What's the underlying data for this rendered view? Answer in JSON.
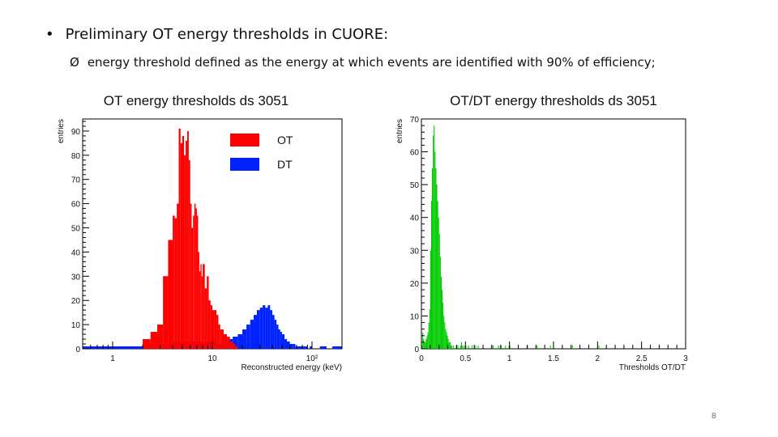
{
  "slide": {
    "bullet_symbol": "•",
    "heading": "Preliminary OT energy thresholds in CUORE:",
    "sub_symbol": "Ø",
    "sub_bullet": "energy threshold defined as the energy at which events are identified with 90% of efficiency;",
    "page_number": "8"
  },
  "chart_data": [
    {
      "type": "histogram",
      "title": "OT energy thresholds ds 3051",
      "xlabel": "Reconstructed energy (keV)",
      "ylabel": "entries",
      "xscale": "log",
      "xlim": [
        0.5,
        200
      ],
      "ylim": [
        0,
        95
      ],
      "xticks": [
        {
          "v": 1,
          "label": "1"
        },
        {
          "v": 10,
          "label": "10"
        },
        {
          "v": 100,
          "label": "10²"
        }
      ],
      "yticks": [
        0,
        10,
        20,
        30,
        40,
        50,
        60,
        70,
        80,
        90
      ],
      "legend": {
        "position": "top-center",
        "entries": [
          {
            "name": "OT",
            "color": "#ff0000"
          },
          {
            "name": "DT",
            "color": "#0022ff"
          }
        ]
      },
      "series": [
        {
          "name": "DT",
          "color": "#0022ff",
          "bin_edges": [
            0.5,
            0.7,
            1,
            1.4,
            2,
            2.8,
            4,
            5.6,
            8,
            11,
            14,
            16,
            18,
            20,
            22,
            24,
            26,
            28,
            30,
            32,
            34,
            36,
            38,
            40,
            42,
            44,
            46,
            48,
            50,
            53,
            56,
            60,
            64,
            68,
            72,
            76,
            80,
            85,
            90,
            95,
            100,
            110,
            120,
            140,
            160,
            200
          ],
          "counts": [
            1,
            1,
            1,
            1,
            2,
            2,
            3,
            3,
            3,
            2,
            4,
            5,
            6,
            8,
            10,
            12,
            14,
            16,
            17,
            18,
            17,
            18,
            16,
            14,
            12,
            10,
            8,
            7,
            6,
            4,
            3,
            2,
            2,
            1,
            1,
            1,
            1,
            1,
            0,
            1,
            0,
            0,
            1,
            0,
            1
          ]
        },
        {
          "name": "OT",
          "color": "#ff0000",
          "bin_edges": [
            2,
            2.4,
            2.8,
            3.2,
            3.6,
            4,
            4.2,
            4.4,
            4.6,
            4.8,
            5,
            5.2,
            5.4,
            5.6,
            5.8,
            6,
            6.2,
            6.4,
            6.6,
            6.8,
            7,
            7.2,
            7.4,
            7.6,
            7.8,
            8,
            8.4,
            8.8,
            9.2,
            9.6,
            10,
            10.5,
            11,
            11.5,
            12,
            12.5,
            13,
            14,
            15,
            16,
            17,
            18
          ],
          "counts": [
            4,
            7,
            10,
            30,
            45,
            55,
            54,
            60,
            91,
            85,
            88,
            80,
            86,
            90,
            78,
            60,
            50,
            55,
            60,
            58,
            55,
            40,
            32,
            35,
            30,
            35,
            25,
            30,
            20,
            18,
            16,
            16,
            14,
            10,
            8,
            8,
            6,
            5,
            3,
            2,
            1
          ]
        }
      ]
    },
    {
      "type": "histogram",
      "title": "OT/DT energy thresholds ds 3051",
      "xlabel": "Thresholds OT/DT",
      "ylabel": "entries",
      "xscale": "linear",
      "xlim": [
        0,
        3
      ],
      "ylim": [
        0,
        70
      ],
      "xticks": [
        {
          "v": 0,
          "label": "0"
        },
        {
          "v": 0.5,
          "label": "0.5"
        },
        {
          "v": 1,
          "label": "1"
        },
        {
          "v": 1.5,
          "label": "1.5"
        },
        {
          "v": 2,
          "label": "2"
        },
        {
          "v": 2.5,
          "label": "2.5"
        },
        {
          "v": 3,
          "label": "3"
        }
      ],
      "yticks": [
        0,
        10,
        20,
        30,
        40,
        50,
        60,
        70
      ],
      "series": [
        {
          "name": "OT/DT",
          "color": "#00cc00",
          "bin_start": 0,
          "bin_width": 0.01,
          "counts": [
            1,
            5,
            3,
            2,
            2,
            3,
            4,
            5,
            8,
            12,
            30,
            45,
            55,
            65,
            68,
            60,
            55,
            50,
            45,
            40,
            35,
            28,
            22,
            18,
            14,
            10,
            8,
            6,
            5,
            4,
            3,
            2,
            2,
            1,
            1,
            0,
            1,
            0,
            0,
            1,
            0,
            1,
            0,
            0,
            1,
            2,
            1,
            0,
            1,
            0,
            1,
            0,
            0,
            1,
            0,
            0,
            0,
            1,
            0,
            0,
            0,
            1,
            0,
            0,
            1,
            0,
            0,
            0,
            0,
            0,
            0,
            0,
            0,
            0,
            0,
            0,
            0,
            0,
            0,
            1,
            0,
            1,
            0,
            0,
            0,
            0,
            0,
            1,
            0,
            0,
            1,
            0,
            0,
            0,
            0,
            1,
            0,
            0,
            0,
            1,
            1,
            0,
            0,
            0,
            0,
            0,
            0,
            0,
            0,
            0,
            0,
            0,
            0,
            0,
            0,
            0,
            0,
            0,
            0,
            0,
            1,
            0,
            0,
            0,
            0,
            0,
            0,
            0,
            0,
            0,
            0,
            1,
            0,
            0,
            0,
            0,
            0,
            0,
            0,
            0,
            0,
            0,
            0,
            0,
            0,
            0,
            1,
            0,
            0,
            0,
            0,
            0,
            0,
            0,
            0,
            0,
            0,
            0,
            0,
            0,
            0,
            0,
            0,
            0,
            0,
            0,
            0,
            0,
            0,
            0,
            0,
            1,
            0,
            0,
            0,
            0,
            0,
            0,
            0,
            0,
            0,
            0,
            0,
            0,
            0,
            0,
            0,
            0,
            0,
            0,
            0,
            0,
            0,
            0,
            0,
            0,
            0,
            0,
            0,
            0,
            0,
            1,
            0,
            0,
            0,
            0,
            0,
            0,
            0,
            0,
            0,
            0,
            0,
            0,
            0,
            0,
            0,
            0,
            0,
            0,
            0,
            0,
            0,
            0,
            0,
            0,
            0,
            0,
            0,
            0,
            0,
            0,
            0,
            0,
            0,
            0,
            0,
            0,
            0,
            0,
            0,
            0,
            0,
            0,
            0,
            0,
            0,
            0,
            0,
            0,
            0,
            0,
            0,
            0,
            0,
            0,
            0,
            0,
            0,
            0,
            0,
            0,
            0,
            0,
            0,
            0,
            0,
            0,
            0,
            0,
            0,
            0,
            0,
            0,
            0,
            0,
            0,
            0,
            0,
            0,
            0,
            0,
            0,
            0,
            0,
            0,
            0,
            0,
            0,
            0,
            0,
            0,
            0,
            0,
            0,
            0,
            0,
            0,
            0,
            0,
            0,
            0,
            0,
            0,
            0,
            0,
            0,
            0
          ]
        }
      ]
    }
  ]
}
